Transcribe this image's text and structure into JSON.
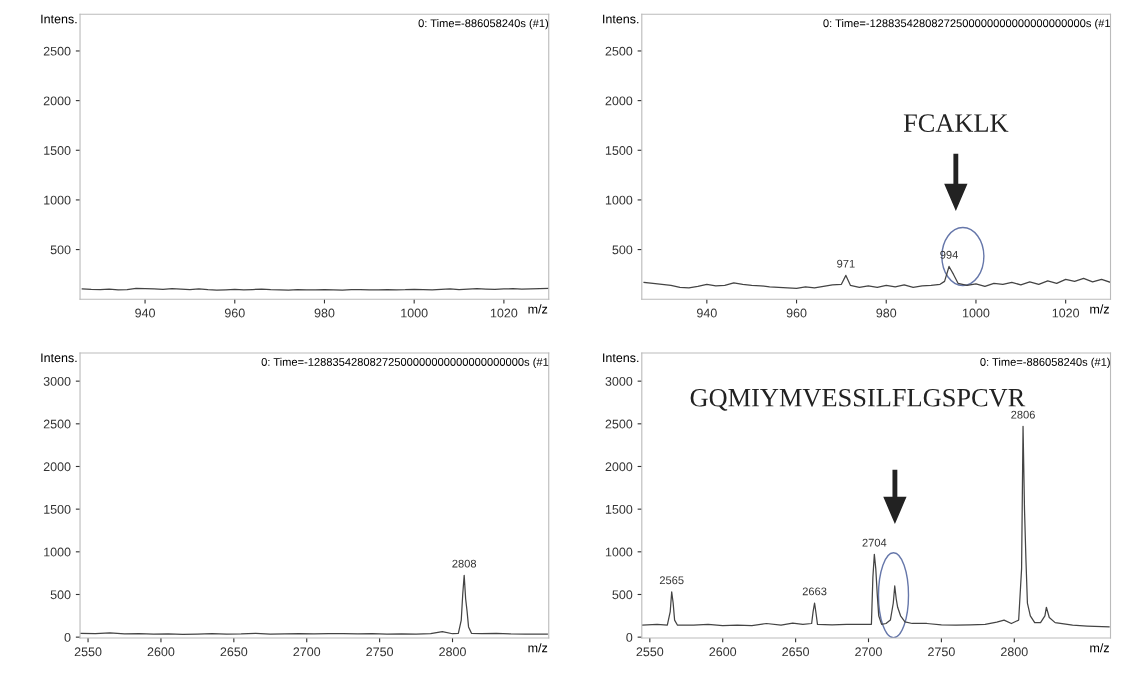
{
  "chart_data": [
    {
      "type": "line",
      "title": "0: Time=-886058240s (#1)",
      "xlabel": "m/z",
      "ylabel": "Intens.",
      "xlim": [
        925.5,
        1030
      ],
      "ylim": [
        0,
        2870
      ],
      "xticks": [
        940,
        960,
        980,
        1000,
        1020
      ],
      "yticks": [
        500,
        1000,
        1500,
        2000,
        2500
      ],
      "grid": false,
      "legend": false,
      "series": [
        {
          "color": "#444444",
          "x": [
            926,
            928,
            930,
            932,
            934,
            936,
            938,
            940,
            942,
            944,
            946,
            948,
            950,
            952,
            954,
            956,
            958,
            960,
            962,
            964,
            966,
            968,
            970,
            972,
            974,
            976,
            978,
            980,
            982,
            984,
            986,
            988,
            990,
            992,
            994,
            996,
            998,
            1000,
            1002,
            1004,
            1006,
            1008,
            1010,
            1012,
            1014,
            1016,
            1018,
            1020,
            1022,
            1024,
            1026,
            1028,
            1030
          ],
          "values": [
            105,
            100,
            98,
            102,
            95,
            96,
            110,
            108,
            104,
            100,
            106,
            102,
            98,
            104,
            96,
            92,
            95,
            100,
            94,
            98,
            102,
            96,
            94,
            92,
            96,
            95,
            93,
            97,
            94,
            92,
            96,
            98,
            94,
            93,
            97,
            95,
            96,
            99,
            97,
            94,
            100,
            104,
            98,
            102,
            106,
            103,
            100,
            104,
            106,
            102,
            105,
            108,
            110
          ]
        }
      ]
    },
    {
      "type": "line",
      "title": "0: Time=-12883542808272500000000000000000000s (#1",
      "xlabel": "m/z",
      "ylabel": "Intens.",
      "xlim": [
        925.5,
        1030
      ],
      "ylim": [
        0,
        2870
      ],
      "xticks": [
        940,
        960,
        980,
        1000,
        1020
      ],
      "yticks": [
        500,
        1000,
        1500,
        2000,
        2500
      ],
      "grid": false,
      "legend": false,
      "annotations": [
        {
          "text": "971",
          "x": 971,
          "y": 240
        },
        {
          "text": "994",
          "x": 994,
          "y": 330
        },
        "FCAKLK"
      ],
      "series": [
        {
          "color": "#444444",
          "x": [
            926,
            928,
            930,
            932,
            934,
            936,
            938,
            940,
            942,
            944,
            946,
            948,
            950,
            952,
            954,
            956,
            958,
            960,
            962,
            964,
            966,
            968,
            970,
            971,
            972,
            974,
            976,
            978,
            980,
            982,
            984,
            986,
            988,
            990,
            992,
            993,
            994,
            995,
            996,
            998,
            1000,
            1002,
            1004,
            1006,
            1008,
            1010,
            1012,
            1014,
            1016,
            1018,
            1020,
            1022,
            1024,
            1026,
            1028,
            1030
          ],
          "values": [
            170,
            160,
            150,
            140,
            120,
            115,
            130,
            150,
            135,
            140,
            165,
            150,
            140,
            135,
            125,
            120,
            115,
            110,
            125,
            115,
            130,
            145,
            150,
            240,
            140,
            120,
            135,
            120,
            140,
            125,
            145,
            120,
            135,
            140,
            150,
            180,
            330,
            250,
            160,
            140,
            155,
            130,
            160,
            150,
            170,
            145,
            175,
            150,
            185,
            160,
            200,
            180,
            210,
            175,
            200,
            170
          ]
        }
      ]
    },
    {
      "type": "line",
      "title": "0: Time=-12883542808272500000000000000000000s (#1",
      "xlabel": "m/z",
      "ylabel": "Intens.",
      "xlim": [
        2544.5,
        2866
      ],
      "ylim": [
        -10,
        3330
      ],
      "xticks": [
        2550,
        2600,
        2650,
        2700,
        2750,
        2800
      ],
      "yticks": [
        0,
        500,
        1000,
        1500,
        2000,
        2500,
        3000
      ],
      "grid": false,
      "legend": false,
      "annotations": [
        {
          "text": "2808",
          "x": 2808,
          "y": 725
        }
      ],
      "series": [
        {
          "color": "#444444",
          "x": [
            2545,
            2555,
            2565,
            2575,
            2585,
            2595,
            2605,
            2615,
            2625,
            2635,
            2645,
            2655,
            2665,
            2675,
            2685,
            2695,
            2705,
            2715,
            2725,
            2735,
            2745,
            2755,
            2765,
            2775,
            2785,
            2793,
            2800,
            2804,
            2806,
            2807,
            2808,
            2809,
            2810,
            2811,
            2813,
            2820,
            2830,
            2840,
            2850,
            2865
          ],
          "values": [
            45,
            40,
            50,
            38,
            40,
            35,
            38,
            32,
            35,
            40,
            35,
            38,
            45,
            35,
            38,
            40,
            38,
            42,
            40,
            38,
            40,
            35,
            38,
            35,
            40,
            65,
            40,
            45,
            200,
            500,
            725,
            450,
            300,
            120,
            45,
            40,
            45,
            38,
            35,
            35
          ]
        }
      ]
    },
    {
      "type": "line",
      "title": "0: Time=-886058240s (#1)",
      "xlabel": "m/z",
      "ylabel": "Intens.",
      "xlim": [
        2544.5,
        2866
      ],
      "ylim": [
        -10,
        3330
      ],
      "xticks": [
        2550,
        2600,
        2650,
        2700,
        2750,
        2800
      ],
      "yticks": [
        0,
        500,
        1000,
        1500,
        2000,
        2500,
        3000
      ],
      "grid": false,
      "legend": false,
      "annotations": [
        {
          "text": "2565",
          "x": 2565,
          "y": 530
        },
        {
          "text": "2663",
          "x": 2663,
          "y": 400
        },
        {
          "text": "2704",
          "x": 2704,
          "y": 970
        },
        {
          "text": "2806",
          "x": 2806,
          "y": 2470
        },
        "GQMIYMVESSILFLGSPCVR"
      ],
      "series": [
        {
          "color": "#444444",
          "x": [
            2545,
            2555,
            2562,
            2564,
            2565,
            2566,
            2567,
            2569,
            2580,
            2590,
            2600,
            2610,
            2620,
            2630,
            2640,
            2648,
            2655,
            2661,
            2662,
            2663,
            2664,
            2665,
            2675,
            2685,
            2695,
            2702,
            2703,
            2704,
            2705,
            2706,
            2707,
            2709,
            2712,
            2715,
            2717,
            2718,
            2719,
            2720,
            2722,
            2725,
            2730,
            2740,
            2750,
            2760,
            2770,
            2780,
            2788,
            2793,
            2798,
            2803,
            2805,
            2806,
            2807,
            2808,
            2809,
            2811,
            2814,
            2818,
            2821,
            2822,
            2824,
            2828,
            2840,
            2850,
            2865
          ],
          "values": [
            140,
            150,
            140,
            300,
            530,
            400,
            200,
            140,
            140,
            150,
            135,
            140,
            135,
            160,
            140,
            165,
            150,
            160,
            300,
            400,
            280,
            150,
            145,
            150,
            150,
            150,
            700,
            970,
            800,
            500,
            250,
            150,
            160,
            200,
            400,
            600,
            450,
            350,
            250,
            180,
            160,
            160,
            145,
            140,
            145,
            150,
            175,
            200,
            160,
            200,
            800,
            2470,
            1500,
            900,
            400,
            250,
            170,
            170,
            250,
            350,
            230,
            170,
            140,
            130,
            120
          ]
        }
      ]
    }
  ]
}
